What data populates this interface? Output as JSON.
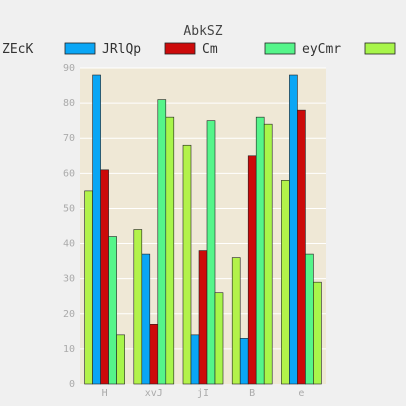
{
  "chart_data": {
    "type": "bar",
    "title": "AbkSZ",
    "xlabel": "",
    "ylabel": "",
    "categories": [
      "H",
      "xvJ",
      "jI",
      "B",
      "e"
    ],
    "ylim": [
      0,
      90
    ],
    "yticks": [
      0,
      10,
      20,
      30,
      40,
      50,
      60,
      70,
      80,
      90
    ],
    "grid": true,
    "legend_position": "top",
    "plot_background": "#efe8d6",
    "series": [
      {
        "name": "ZEcK",
        "color": "#b3f24a",
        "values": [
          55,
          44,
          68,
          36,
          58
        ]
      },
      {
        "name": "JRlQp",
        "color": "#0aa6f5",
        "values": [
          88,
          37,
          14,
          13,
          88
        ]
      },
      {
        "name": "Cm",
        "color": "#cc0a0a",
        "values": [
          61,
          17,
          38,
          65,
          78
        ]
      },
      {
        "name": "eyCmr",
        "color": "#55f58a",
        "values": [
          42,
          81,
          75,
          76,
          37
        ]
      },
      {
        "name": "",
        "color": "#a8f54a",
        "values": [
          14,
          76,
          26,
          74,
          29
        ]
      }
    ]
  }
}
